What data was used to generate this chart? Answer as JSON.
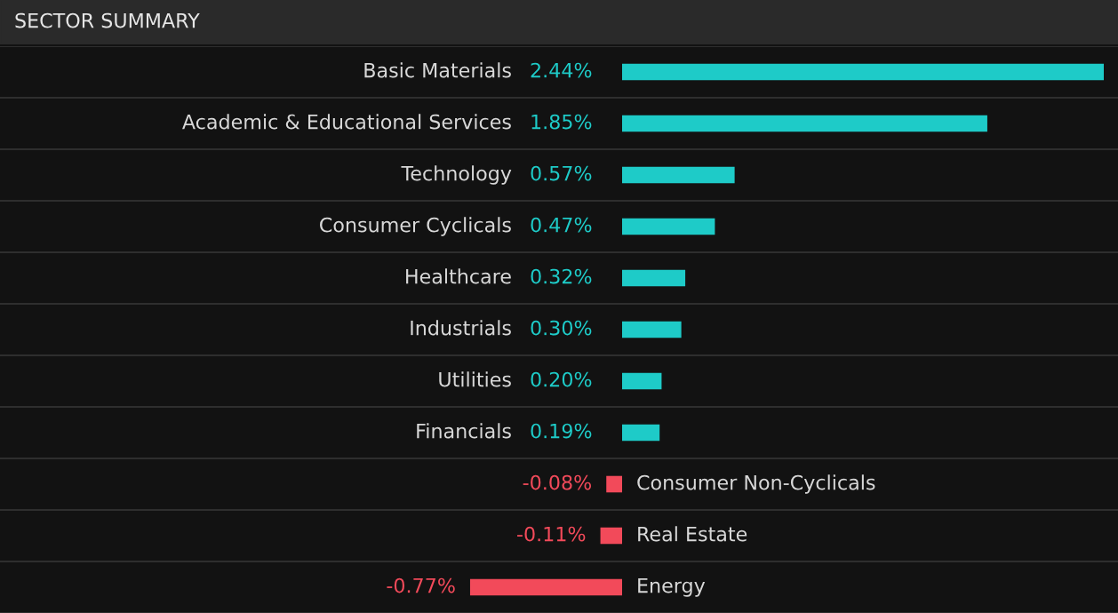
{
  "chart_data": {
    "type": "bar",
    "orientation": "horizontal",
    "title": "SECTOR SUMMARY",
    "categories": [
      "Basic Materials",
      "Academic & Educational Services",
      "Technology",
      "Consumer Cyclicals",
      "Healthcare",
      "Industrials",
      "Utilities",
      "Financials",
      "Consumer Non-Cyclicals",
      "Real Estate",
      "Energy"
    ],
    "values": [
      2.44,
      1.85,
      0.57,
      0.47,
      0.32,
      0.3,
      0.2,
      0.19,
      -0.08,
      -0.11,
      -0.77
    ],
    "value_labels": [
      "2.44%",
      "1.85%",
      "0.57%",
      "0.47%",
      "0.32%",
      "0.30%",
      "0.20%",
      "0.19%",
      "-0.08%",
      "-0.11%",
      "-0.77%"
    ],
    "colors": [
      "#1ecbc8",
      "#1ecbc8",
      "#1ecbc8",
      "#1ecbc8",
      "#1ecbc8",
      "#1ecbc8",
      "#1ecbc8",
      "#1ecbc8",
      "#f24a5a",
      "#f24a5a",
      "#f24a5a"
    ]
  }
}
